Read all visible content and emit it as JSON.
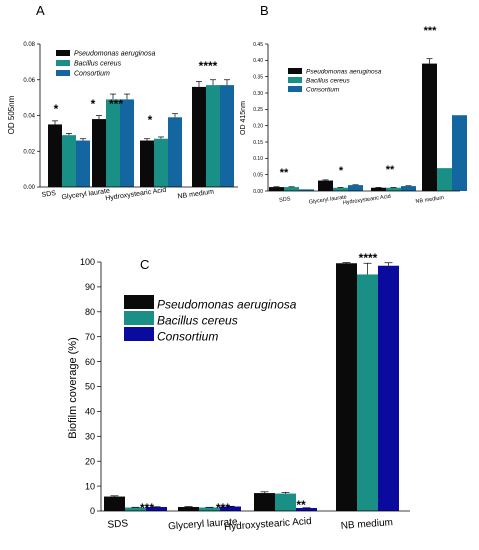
{
  "colors": {
    "pseudomonas": "#0a0a0a",
    "bacillus": "#1a8f86",
    "consortium_ab": "#1466a0",
    "consortium_c": "#0a0a9e",
    "axis": "#000000"
  },
  "chart_data": [
    {
      "panel": "A",
      "type": "bar",
      "ylabel": "OD 505nm",
      "ylim": [
        0,
        0.08
      ],
      "yticks": [
        "0.00",
        "0.02",
        "0.04",
        "0.06",
        "0.08"
      ],
      "categories": [
        "SDS",
        "Glyceryl laurate",
        "Hydroxystearic Acid",
        "NB medium"
      ],
      "series": [
        {
          "name": "Pseudomonas aeruginosa",
          "values": [
            0.035,
            0.038,
            0.026,
            0.056
          ],
          "errors": [
            0.002,
            0.002,
            0.001,
            0.003
          ]
        },
        {
          "name": "Bacillus cereus",
          "values": [
            0.029,
            0.049,
            0.027,
            0.057
          ],
          "errors": [
            0.001,
            0.003,
            0.001,
            0.003
          ]
        },
        {
          "name": "Consortium",
          "values": [
            0.026,
            0.049,
            0.039,
            0.057
          ],
          "errors": [
            0.001,
            0.003,
            0.002,
            0.003
          ]
        }
      ],
      "annotations": [
        "*",
        "* ***",
        "*",
        "****"
      ],
      "legend": "top-left"
    },
    {
      "panel": "B",
      "type": "bar",
      "ylabel": "OD 415nm",
      "ylim": [
        0,
        0.45
      ],
      "yticks": [
        "0.00",
        "0.05",
        "0.10",
        "0.15",
        "0.20",
        "0.25",
        "0.30",
        "0.35",
        "0.40",
        "0.45"
      ],
      "categories": [
        "SDS",
        "Glyceryl laurate",
        "Hydroxystearic Acid",
        "NB medium"
      ],
      "series": [
        {
          "name": "Pseudomonas aeruginosa",
          "values": [
            0.012,
            0.032,
            0.01,
            0.39
          ],
          "errors": [
            0.001,
            0.002,
            0.001,
            0.015
          ]
        },
        {
          "name": "Bacillus cereus",
          "values": [
            0.012,
            0.01,
            0.01,
            0.07
          ],
          "errors": [
            0.001,
            0.001,
            0.001,
            0.0
          ]
        },
        {
          "name": "Consortium",
          "values": [
            0.005,
            0.018,
            0.015,
            0.232
          ],
          "errors": [
            0.0,
            0.001,
            0.001,
            0.0
          ]
        }
      ],
      "annotations": [
        "**",
        "*",
        "**",
        "***"
      ],
      "legend": "top-left"
    },
    {
      "panel": "C",
      "type": "bar",
      "ylabel": "Biofilm coverage (%)",
      "ylim": [
        0,
        100
      ],
      "yticks": [
        "0",
        "10",
        "20",
        "30",
        "40",
        "50",
        "60",
        "70",
        "80",
        "90",
        "100"
      ],
      "categories": [
        "SDS",
        "Glyceryl laurate",
        "Hydroxystearic Acid",
        "NB medium"
      ],
      "series": [
        {
          "name": "Pseudomonas aeruginosa",
          "values": [
            5.8,
            1.6,
            7.2,
            99.5
          ],
          "errors": [
            0.3,
            0.2,
            0.5,
            0.3
          ]
        },
        {
          "name": "Bacillus cereus",
          "values": [
            1.4,
            1.4,
            7.0,
            95.0
          ],
          "errors": [
            0.1,
            0.1,
            0.5,
            4.5
          ]
        },
        {
          "name": "Consortium",
          "values": [
            1.6,
            1.8,
            1.2,
            98.5
          ],
          "errors": [
            0.1,
            0.1,
            0.1,
            1.2
          ]
        }
      ],
      "annotations": [
        "***",
        "***",
        "**",
        "****"
      ],
      "legend": "top-left"
    }
  ]
}
